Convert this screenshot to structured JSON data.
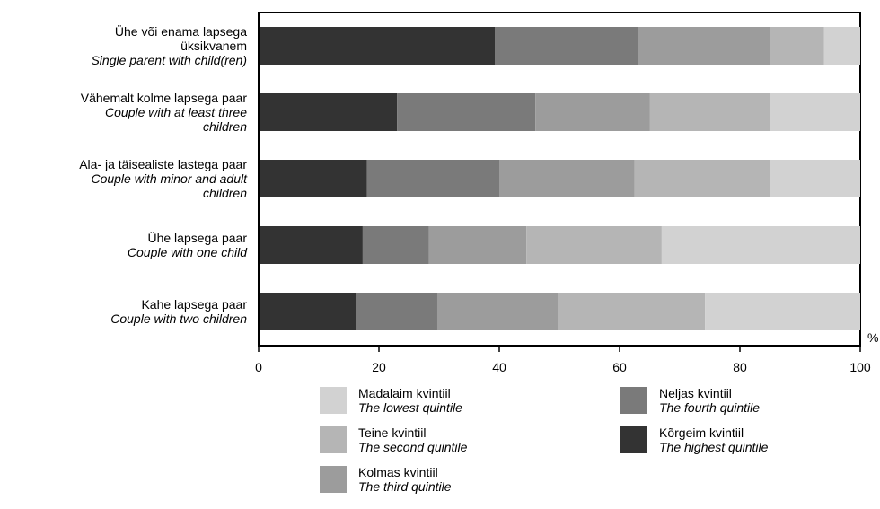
{
  "chart_data": {
    "type": "bar",
    "orientation": "horizontal",
    "stacked": true,
    "x_unit": "%",
    "xlim": [
      0,
      100
    ],
    "xticks": [
      "0",
      "20",
      "40",
      "60",
      "80",
      "100"
    ],
    "categories": [
      {
        "et": "Ühe või enama lapsega üksikvanem",
        "en": "Single parent with child(ren)"
      },
      {
        "et": "Vähemalt kolme lapsega paar",
        "en": "Couple with at least three children"
      },
      {
        "et": "Ala- ja täisealiste lastega paar",
        "en": "Couple with minor and adult children"
      },
      {
        "et": "Ühe lapsega paar",
        "en": "Couple with one child"
      },
      {
        "et": "Kahe lapsega paar",
        "en": "Couple with two children"
      }
    ],
    "series": [
      {
        "name": "Kõrgeim kvintiil",
        "name_en": "The highest quintile",
        "color": "#333333",
        "values": [
          39.3,
          23.0,
          18.0,
          17.3,
          16.2
        ]
      },
      {
        "name": "Neljas kvintiil",
        "name_en": "The fourth quintile",
        "color": "#7a7a7a",
        "values": [
          23.7,
          23.0,
          22.0,
          11.0,
          13.5
        ]
      },
      {
        "name": "Kolmas kvintiil",
        "name_en": "The third quintile",
        "color": "#9c9c9c",
        "values": [
          22.0,
          19.0,
          22.5,
          16.2,
          20.0
        ]
      },
      {
        "name": "Teine kvintiil",
        "name_en": "The second quintile",
        "color": "#b5b5b5",
        "values": [
          9.0,
          20.0,
          22.5,
          22.5,
          24.5
        ]
      },
      {
        "name": "Madalaim kvintiil",
        "name_en": "The lowest quintile",
        "color": "#d2d2d2",
        "values": [
          6.0,
          15.0,
          15.0,
          33.0,
          25.8
        ]
      }
    ],
    "grid": false,
    "legend_position": "bottom"
  }
}
